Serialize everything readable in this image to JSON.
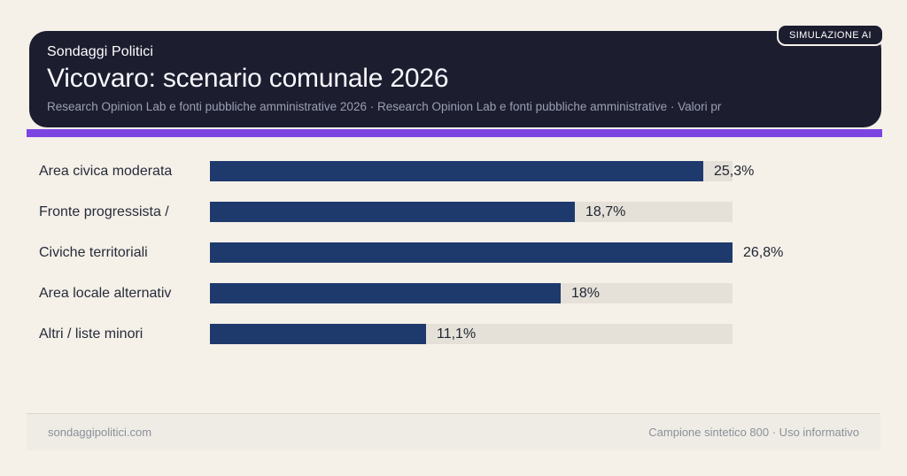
{
  "badge": {
    "label": "SIMULAZIONE AI"
  },
  "header": {
    "brand": "Sondaggi Politici",
    "title": "Vicovaro: scenario comunale 2026",
    "subtitle": "Research Opinion Lab e fonti pubbliche amministrative 2026 · Research Opinion Lab e fonti pubbliche amministrative · Valori pr"
  },
  "colors": {
    "page_background": "#f5f0e8",
    "card_background": "#1c1d2f",
    "accent_purple": "#7c45e2",
    "bar_fill": "#1e3a6d",
    "bar_track": "#e5e1d9"
  },
  "chart_data": {
    "type": "bar",
    "orientation": "horizontal",
    "categories": [
      "Area civica moderata",
      "Fronte progressista /",
      "Civiche territoriali",
      "Area locale alternativ",
      "Altri / liste minori"
    ],
    "values": [
      25.3,
      18.7,
      26.8,
      18,
      11.1
    ],
    "value_labels": [
      "25,3%",
      "18,7%",
      "26,8%",
      "18%",
      "11,1%"
    ],
    "xlim": [
      0,
      26.8
    ],
    "unit": "%",
    "grid": false,
    "legend": false,
    "title": "Vicovaro: scenario comunale 2026"
  },
  "footer": {
    "site": "sondaggipolitici.com",
    "note": "Campione sintetico 800 · Uso informativo"
  }
}
